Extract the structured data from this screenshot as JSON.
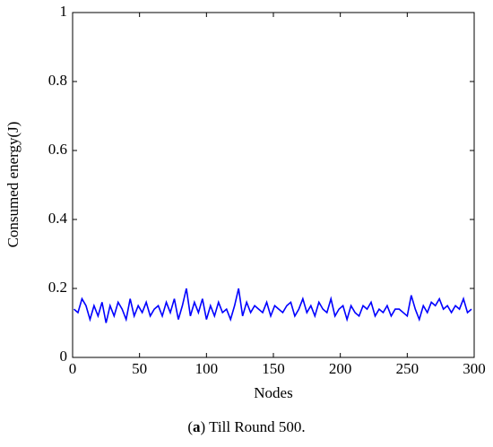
{
  "chart_data": {
    "type": "line",
    "xlabel": "Nodes",
    "ylabel": "Consumed energy(J)",
    "caption": {
      "open": "(",
      "label": "a",
      "close": ")",
      "text": "Till Round 500."
    },
    "xlim": [
      0,
      300
    ],
    "xticks": [
      0,
      50,
      100,
      150,
      200,
      250,
      300
    ],
    "ylim": [
      0,
      1
    ],
    "yticks": [
      0,
      0.2,
      0.4,
      0.6,
      0.8,
      1
    ],
    "x": [
      1,
      4,
      7,
      10,
      13,
      16,
      19,
      22,
      25,
      28,
      31,
      34,
      37,
      40,
      43,
      46,
      49,
      52,
      55,
      58,
      61,
      64,
      67,
      70,
      73,
      76,
      79,
      82,
      85,
      88,
      91,
      94,
      97,
      100,
      103,
      106,
      109,
      112,
      115,
      118,
      121,
      124,
      127,
      130,
      133,
      136,
      139,
      142,
      145,
      148,
      151,
      154,
      157,
      160,
      163,
      166,
      169,
      172,
      175,
      178,
      181,
      184,
      187,
      190,
      193,
      196,
      199,
      202,
      205,
      208,
      211,
      214,
      217,
      220,
      223,
      226,
      229,
      232,
      235,
      238,
      241,
      244,
      247,
      250,
      253,
      256,
      259,
      262,
      265,
      268,
      271,
      274,
      277,
      280,
      283,
      286,
      289,
      292,
      295,
      298
    ],
    "series": [
      {
        "color": "#0000ff",
        "values": [
          0.14,
          0.13,
          0.17,
          0.15,
          0.11,
          0.15,
          0.12,
          0.16,
          0.1,
          0.15,
          0.12,
          0.16,
          0.14,
          0.11,
          0.17,
          0.12,
          0.15,
          0.13,
          0.16,
          0.12,
          0.14,
          0.15,
          0.12,
          0.16,
          0.13,
          0.17,
          0.11,
          0.15,
          0.2,
          0.12,
          0.16,
          0.13,
          0.17,
          0.11,
          0.15,
          0.12,
          0.16,
          0.13,
          0.14,
          0.11,
          0.15,
          0.2,
          0.12,
          0.16,
          0.13,
          0.15,
          0.14,
          0.13,
          0.16,
          0.12,
          0.15,
          0.14,
          0.13,
          0.15,
          0.16,
          0.12,
          0.14,
          0.17,
          0.13,
          0.15,
          0.12,
          0.16,
          0.14,
          0.13,
          0.17,
          0.12,
          0.14,
          0.15,
          0.11,
          0.15,
          0.13,
          0.12,
          0.15,
          0.14,
          0.16,
          0.12,
          0.14,
          0.13,
          0.15,
          0.12,
          0.14,
          0.14,
          0.13,
          0.12,
          0.18,
          0.14,
          0.11,
          0.15,
          0.13,
          0.16,
          0.15,
          0.17,
          0.14,
          0.15,
          0.13,
          0.15,
          0.14,
          0.17,
          0.13,
          0.14
        ]
      }
    ]
  }
}
